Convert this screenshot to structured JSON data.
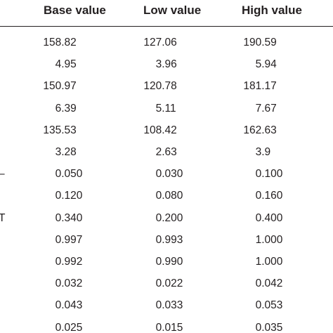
{
  "table": {
    "headers": {
      "base": "Base value",
      "low": "Low value",
      "high": "High value"
    },
    "row_stubs": [
      "",
      "",
      "",
      "",
      "",
      "",
      "–",
      "",
      "T",
      "",
      "",
      "",
      "",
      ""
    ],
    "rows": [
      {
        "base": "158.82",
        "low": "127.06",
        "high": "190.59"
      },
      {
        "base": "4.95",
        "low": "3.96",
        "high": "5.94"
      },
      {
        "base": "150.97",
        "low": "120.78",
        "high": "181.17"
      },
      {
        "base": "6.39",
        "low": "5.11",
        "high": "7.67"
      },
      {
        "base": "135.53",
        "low": "108.42",
        "high": "162.63"
      },
      {
        "base": "3.28",
        "low": "2.63",
        "high": "3.9"
      },
      {
        "base": "0.050",
        "low": "0.030",
        "high": "0.100"
      },
      {
        "base": "0.120",
        "low": "0.080",
        "high": "0.160"
      },
      {
        "base": "0.340",
        "low": "0.200",
        "high": "0.400"
      },
      {
        "base": "0.997",
        "low": "0.993",
        "high": "1.000"
      },
      {
        "base": "0.992",
        "low": "0.990",
        "high": "1.000"
      },
      {
        "base": "0.032",
        "low": "0.022",
        "high": "0.042"
      },
      {
        "base": "0.043",
        "low": "0.033",
        "high": "0.053"
      },
      {
        "base": "0.025",
        "low": "0.015",
        "high": "0.035"
      }
    ]
  }
}
